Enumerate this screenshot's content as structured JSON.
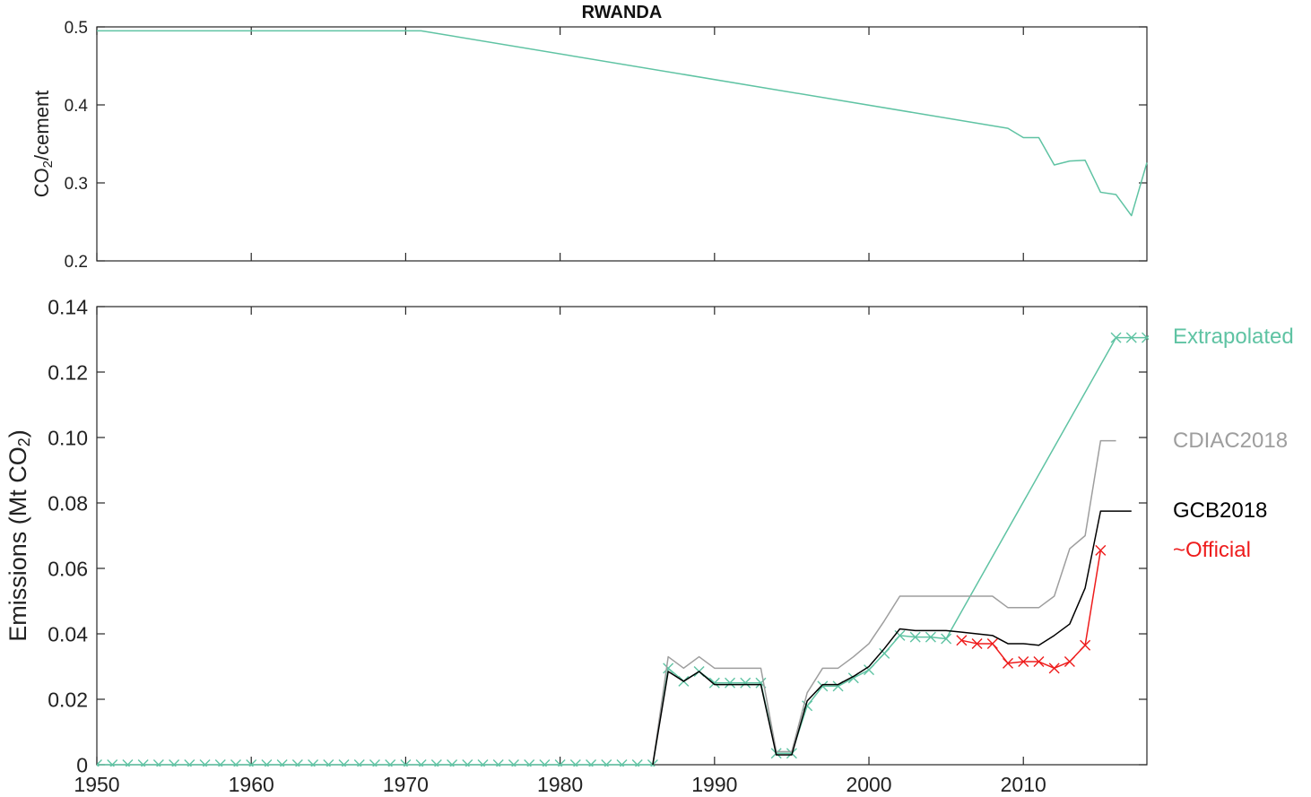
{
  "chart_data": [
    {
      "type": "line",
      "title": "RWANDA",
      "xlabel": "",
      "ylabel": "CO",
      "ylabel_sub": "2",
      "ylabel_tail": "/cement",
      "xlim": [
        1950,
        2018
      ],
      "ylim": [
        0.2,
        0.5
      ],
      "xticks": [
        1950,
        1960,
        1970,
        1980,
        1990,
        2000,
        2010
      ],
      "yticks": [
        "0.2",
        "0.3",
        "0.4",
        "0.5"
      ],
      "grid": false,
      "series": [
        {
          "color": "#5fc3a3",
          "x": [
            1950,
            1971,
            2009,
            2010,
            2011,
            2012,
            2013,
            2014,
            2015,
            2016,
            2017,
            2018
          ],
          "y": [
            0.495,
            0.495,
            0.37,
            0.358,
            0.358,
            0.323,
            0.328,
            0.329,
            0.288,
            0.285,
            0.258,
            0.326
          ]
        }
      ]
    },
    {
      "type": "line",
      "xlabel": "",
      "ylabel": "Emissions (Mt CO",
      "ylabel_sub": "2",
      "ylabel_tail": ")",
      "xlim": [
        1950,
        2018
      ],
      "ylim": [
        0,
        0.14
      ],
      "xticks": [
        1950,
        1960,
        1970,
        1980,
        1990,
        2000,
        2010
      ],
      "yticks": [
        "0",
        "0.02",
        "0.04",
        "0.06",
        "0.08",
        "0.10",
        "0.12",
        "0.14"
      ],
      "grid": false,
      "series": [
        {
          "name": "Extrapolated",
          "color": "#5fc3a3",
          "marker": "x",
          "x": [
            1950,
            1951,
            1952,
            1953,
            1954,
            1955,
            1956,
            1957,
            1958,
            1959,
            1960,
            1961,
            1962,
            1963,
            1964,
            1965,
            1966,
            1967,
            1968,
            1969,
            1970,
            1971,
            1972,
            1973,
            1974,
            1975,
            1976,
            1977,
            1978,
            1979,
            1980,
            1981,
            1982,
            1983,
            1984,
            1985,
            1986,
            1987,
            1988,
            1989,
            1990,
            1991,
            1992,
            1993,
            1994,
            1995,
            1996,
            1997,
            1998,
            1999,
            2000,
            2001,
            2002,
            2003,
            2004,
            2005,
            2006,
            2007,
            2008,
            2009,
            2010,
            2011,
            2012,
            2013,
            2014,
            2015,
            2016,
            2017,
            2018
          ],
          "y": [
            0,
            0,
            0,
            0,
            0,
            0,
            0,
            0,
            0,
            0,
            0,
            0,
            0,
            0,
            0,
            0,
            0,
            0,
            0,
            0,
            0,
            0,
            0,
            0,
            0,
            0,
            0,
            0,
            0,
            0,
            0,
            0,
            0,
            0,
            0,
            0,
            0,
            0.0295,
            0.0255,
            0.0285,
            0.025,
            0.025,
            0.025,
            0.025,
            0.0035,
            0.0035,
            0.018,
            0.024,
            0.024,
            0.0265,
            0.029,
            0.034,
            0.0395,
            0.039,
            0.039,
            0.0385,
            null,
            null,
            null,
            null,
            null,
            null,
            null,
            null,
            null,
            null,
            0.1305,
            0.1305,
            0.1305
          ],
          "markers_from": 1950
        },
        {
          "name": "CDIAC2018",
          "color": "#9e9e9e",
          "x": [
            1986,
            1987,
            1988,
            1989,
            1990,
            1991,
            1992,
            1993,
            1994,
            1995,
            1996,
            1997,
            1998,
            1999,
            2000,
            2001,
            2002,
            2003,
            2004,
            2005,
            2006,
            2007,
            2008,
            2009,
            2010,
            2011,
            2012,
            2013,
            2014,
            2015,
            2016
          ],
          "y": [
            0,
            0.033,
            0.0295,
            0.033,
            0.0295,
            0.0295,
            0.0295,
            0.0295,
            0.004,
            0.004,
            0.022,
            0.0295,
            0.0295,
            0.033,
            0.037,
            0.044,
            0.0515,
            0.0515,
            0.0515,
            0.0515,
            0.0515,
            0.0515,
            0.0515,
            0.048,
            0.048,
            0.048,
            0.0515,
            0.066,
            0.07,
            0.099,
            0.099
          ]
        },
        {
          "name": "GCB2018",
          "color": "#000000",
          "x": [
            1986,
            1987,
            1988,
            1989,
            1990,
            1991,
            1992,
            1993,
            1994,
            1995,
            1996,
            1997,
            1998,
            1999,
            2000,
            2001,
            2002,
            2003,
            2004,
            2005,
            2006,
            2007,
            2008,
            2009,
            2010,
            2011,
            2012,
            2013,
            2014,
            2015,
            2016,
            2017
          ],
          "y": [
            0,
            0.0285,
            0.0255,
            0.0285,
            0.0245,
            0.0245,
            0.0245,
            0.0245,
            0.003,
            0.003,
            0.0195,
            0.0245,
            0.0245,
            0.027,
            0.03,
            0.0355,
            0.0415,
            0.041,
            0.041,
            0.041,
            0.0405,
            0.04,
            0.0395,
            0.037,
            0.037,
            0.0365,
            0.0395,
            0.043,
            0.054,
            0.0775,
            0.0775,
            0.0775
          ]
        },
        {
          "name": "~Official",
          "color": "#ee1c1c",
          "marker": "x",
          "x": [
            2006,
            2007,
            2008,
            2009,
            2010,
            2011,
            2012,
            2013,
            2014,
            2015
          ],
          "y": [
            0.038,
            0.037,
            0.037,
            0.031,
            0.0315,
            0.0315,
            0.0295,
            0.0315,
            0.0365,
            0.0655
          ]
        }
      ]
    }
  ],
  "legend": [
    {
      "label": "Extrapolated",
      "color": "#5fc3a3",
      "value": 0.131
    },
    {
      "label": "CDIAC2018",
      "color": "#9e9e9e",
      "value": 0.099
    },
    {
      "label": "GCB2018",
      "color": "#000000",
      "value": 0.077
    },
    {
      "label": "~Official",
      "color": "#ee1c1c",
      "value": 0.066
    }
  ]
}
